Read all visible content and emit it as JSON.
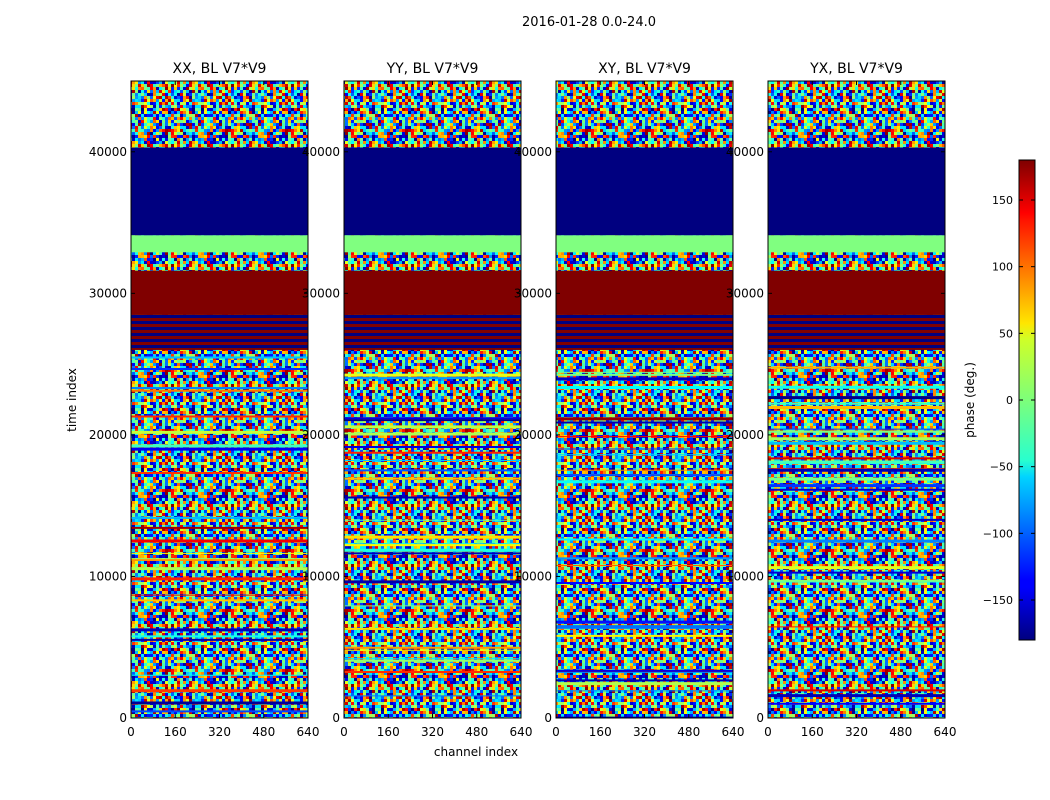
{
  "figure_title": "2016-01-28 0.0-24.0",
  "chart_data": {
    "type": "heatmap",
    "suptitle": "2016-01-28 0.0-24.0",
    "xlabel": "channel index",
    "ylabel": "time index",
    "xlim": [
      0,
      640
    ],
    "ylim": [
      0,
      45000
    ],
    "xticks": [
      0,
      160,
      320,
      480,
      640
    ],
    "yticks": [
      0,
      10000,
      20000,
      30000,
      40000
    ],
    "panels": [
      {
        "title": "XX, BL V7*V9",
        "polarization": "XX"
      },
      {
        "title": "YY, BL V7*V9",
        "polarization": "YY"
      },
      {
        "title": "XY, BL V7*V9",
        "polarization": "XY"
      },
      {
        "title": "YX, BL V7*V9",
        "polarization": "YX"
      }
    ],
    "colorbar": {
      "label": "phase (deg.)",
      "range": [
        -180,
        180
      ],
      "ticks": [
        -150,
        -100,
        -50,
        0,
        50,
        100,
        150
      ],
      "colormap": "jet"
    },
    "bands": [
      {
        "t0": 34100,
        "t1": 40300,
        "value": -180,
        "pattern": "flat"
      },
      {
        "t0": 32900,
        "t1": 34100,
        "value": 0,
        "pattern": "flat"
      },
      {
        "t0": 28500,
        "t1": 31600,
        "value": 180,
        "pattern": "flat"
      },
      {
        "t0": 26000,
        "t1": 28500,
        "value": 180,
        "pattern": "stripes"
      }
    ]
  },
  "colors": {
    "jet_low": "#00007f",
    "jet_mid": "#7fff7f",
    "jet_high": "#7f0000",
    "axis": "#000000",
    "background": "#ffffff"
  }
}
